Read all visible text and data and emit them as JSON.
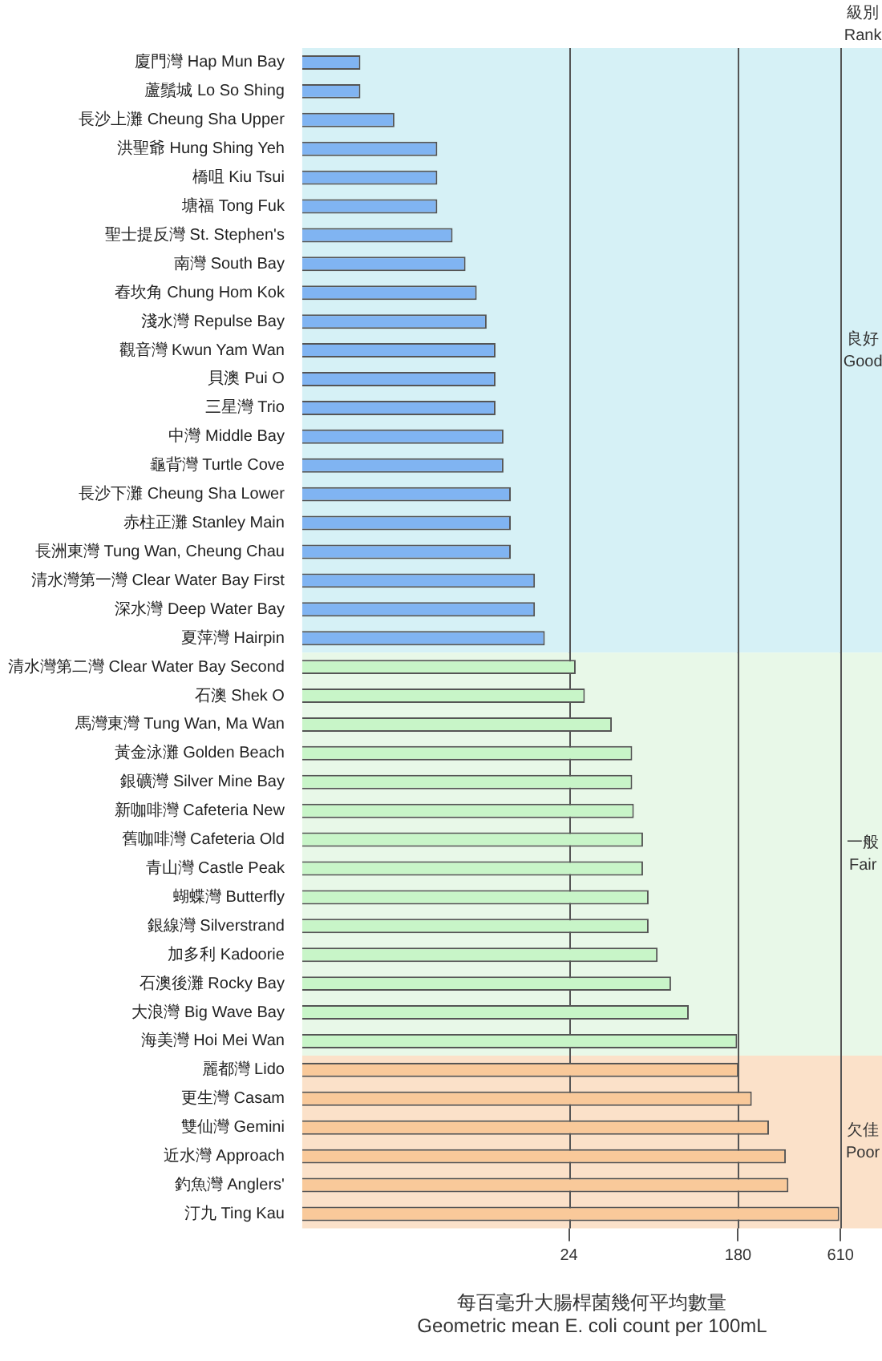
{
  "chart_data": {
    "type": "bar",
    "orientation": "horizontal",
    "log": "x",
    "categories": [
      "廈門灣 Hap Mun Bay",
      "蘆鬚城 Lo So Shing",
      "長沙上灘 Cheung Sha Upper",
      "洪聖爺 Hung Shing Yeh",
      "橋咀 Kiu Tsui",
      "塘福 Tong Fuk",
      "聖士提反灣 St. Stephen's",
      "南灣 South Bay",
      "舂坎角 Chung Hom Kok",
      "淺水灣 Repulse Bay",
      "觀音灣 Kwun Yam Wan",
      "貝澳 Pui O",
      "三星灣 Trio",
      "中灣 Middle Bay",
      "龜背灣 Turtle Cove",
      "長沙下灘 Cheung Sha Lower",
      "赤柱正灘 Stanley Main",
      "長洲東灣 Tung Wan, Cheung Chau",
      "清水灣第一灣 Clear Water Bay First",
      "深水灣 Deep Water Bay",
      "夏萍灣 Hairpin",
      "清水灣第二灣 Clear Water Bay Second",
      "石澳 Shek O",
      "馬灣東灣 Tung Wan, Ma Wan",
      "黃金泳灘 Golden Beach",
      "銀礦灣 Silver Mine Bay",
      "新咖啡灣 Cafeteria New",
      "舊咖啡灣 Cafeteria Old",
      "青山灣 Castle Peak",
      "蝴蝶灣 Butterfly",
      "銀線灣 Silverstrand",
      "加多利 Kadoorie",
      "石澳後灘 Rocky Bay",
      "大浪灣 Big Wave Bay",
      "海美灣 Hoi Mei Wan",
      "麗都灣 Lido",
      "更生灣 Casam",
      "雙仙灣 Gemini",
      "近水灣 Approach",
      "釣魚灣 Anglers'",
      "汀九 Ting Kau"
    ],
    "values": [
      2,
      2,
      3,
      5,
      5,
      5,
      6,
      7,
      8,
      9,
      10,
      10,
      10,
      11,
      11,
      12,
      12,
      12,
      16,
      16,
      18,
      26,
      29,
      40,
      51,
      51,
      52,
      58,
      58,
      62,
      62,
      69,
      81,
      100,
      178,
      181,
      212,
      260,
      318,
      328,
      601
    ],
    "colors": [
      "#80b4f2",
      "#80b4f2",
      "#80b4f2",
      "#80b4f2",
      "#80b4f2",
      "#80b4f2",
      "#80b4f2",
      "#80b4f2",
      "#80b4f2",
      "#80b4f2",
      "#80b4f2",
      "#80b4f2",
      "#80b4f2",
      "#80b4f2",
      "#80b4f2",
      "#80b4f2",
      "#80b4f2",
      "#80b4f2",
      "#80b4f2",
      "#80b4f2",
      "#80b4f2",
      "#c8f5c8",
      "#c8f5c8",
      "#c8f5c8",
      "#c8f5c8",
      "#c8f5c8",
      "#c8f5c8",
      "#c8f5c8",
      "#c8f5c8",
      "#c8f5c8",
      "#c8f5c8",
      "#c8f5c8",
      "#c8f5c8",
      "#c8f5c8",
      "#c8f5c8",
      "#f9c99a",
      "#f9c99a",
      "#f9c99a",
      "#f9c99a",
      "#f9c99a",
      "#f9c99a"
    ],
    "xlim": [
      1,
      1000
    ],
    "xticks": [
      24,
      180,
      610
    ],
    "grid": "x",
    "legend": false,
    "xlabel": "每百毫升大腸桿菌幾何平均數量\nGeometric mean E. coli count per 100mL",
    "annotations": [
      "級別\nRank"
    ],
    "bands": [
      {
        "axis": "y",
        "from": "廈門灣 Hap Mun Bay",
        "to": "夏萍灣 Hairpin",
        "label": "良好\nGood",
        "color": "#d6f1f6"
      },
      {
        "axis": "y",
        "from": "清水灣第二灣 Clear Water Bay Second",
        "to": "海美灣 Hoi Mei Wan",
        "label": "一般\nFair",
        "color": "#e8f8e8"
      },
      {
        "axis": "y",
        "from": "麗都灣 Lido",
        "to": "汀九 Ting Kau",
        "label": "欠佳\nPoor",
        "color": "#fbe1c9"
      }
    ]
  }
}
